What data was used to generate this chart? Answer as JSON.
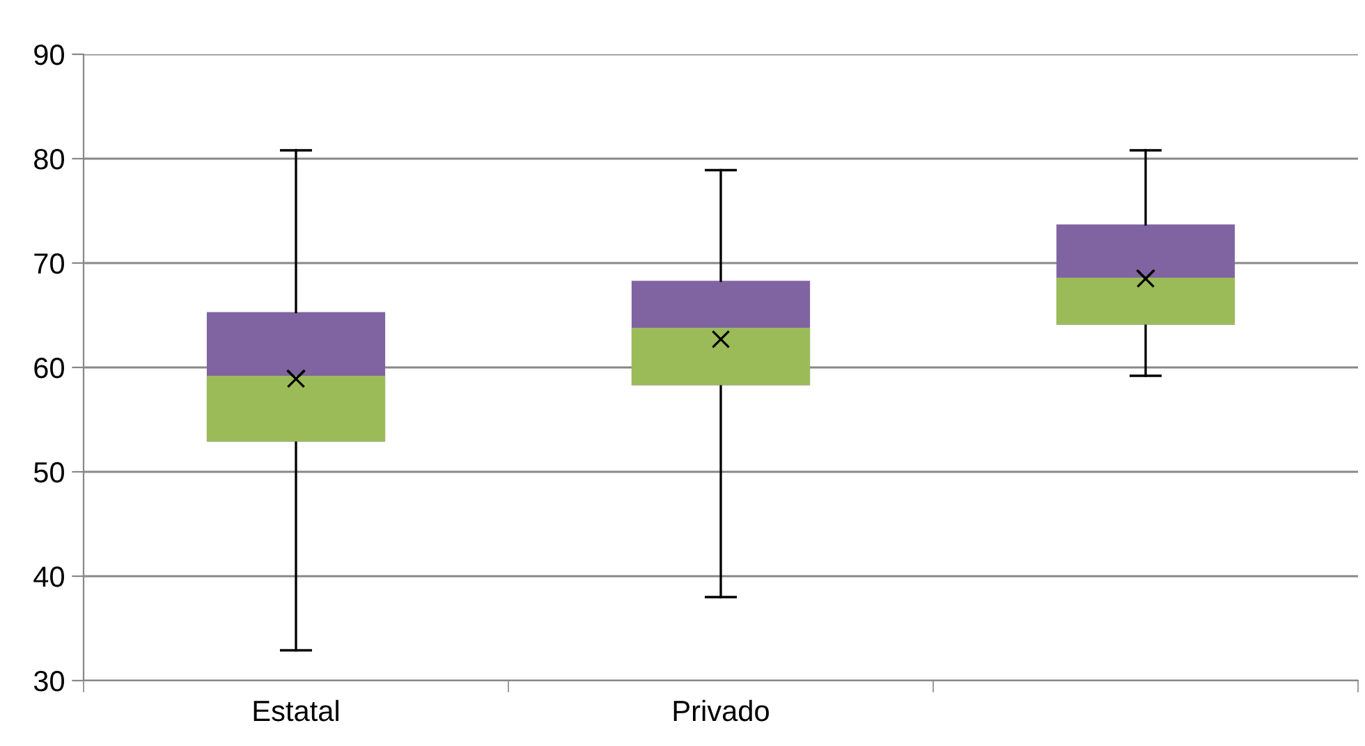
{
  "chart_data": {
    "type": "box",
    "categories": [
      "Estatal",
      "Privado",
      null
    ],
    "boxes": [
      {
        "low": 32.9,
        "q1": 52.9,
        "median": 59.1,
        "q3": 65.3,
        "high": 80.8,
        "mean": 58.9
      },
      {
        "low": 38.0,
        "q1": 58.3,
        "median": 63.7,
        "q3": 68.3,
        "high": 78.9,
        "mean": 62.7
      },
      {
        "low": 59.2,
        "q1": 64.1,
        "median": 68.5,
        "q3": 73.7,
        "high": 80.8,
        "mean": 68.5
      }
    ],
    "colors": [
      [
        "#9bbb59",
        "#8064a2"
      ],
      [
        "#9bbb59",
        "#8064a2"
      ],
      [
        "#9bbb59",
        "#8064a2"
      ]
    ],
    "ylim": [
      30,
      90
    ],
    "yticks": [
      30,
      40,
      50,
      60,
      70,
      80,
      90
    ],
    "grid": "y",
    "marker": "cross"
  }
}
